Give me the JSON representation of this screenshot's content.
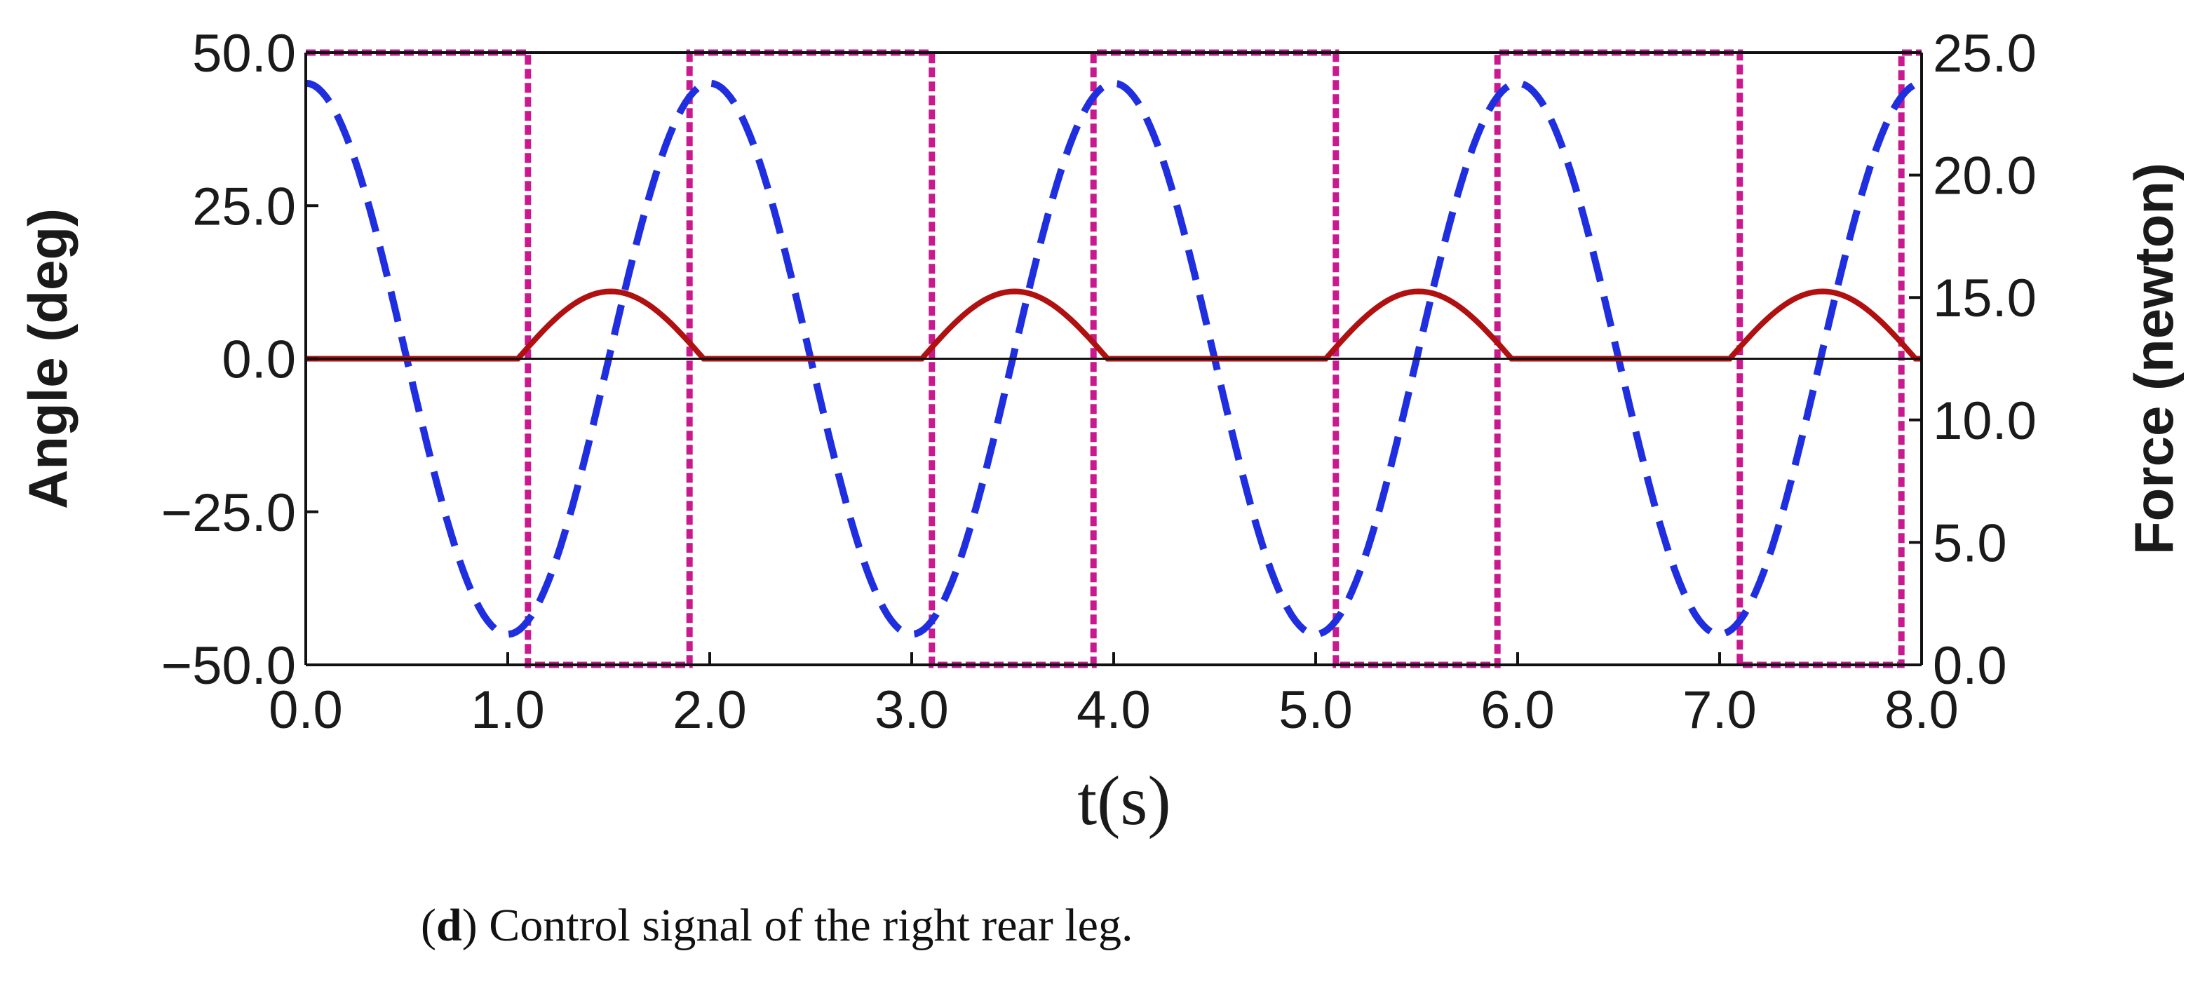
{
  "chart_data": {
    "type": "line",
    "x_range": [
      0,
      8
    ],
    "y_left_range": [
      -50,
      50
    ],
    "y_right_range": [
      0,
      25
    ],
    "x_ticks": [
      "0.0",
      "1.0",
      "2.0",
      "3.0",
      "4.0",
      "5.0",
      "6.0",
      "7.0",
      "8.0"
    ],
    "y_left_ticks": [
      "50.0",
      "25.0",
      "0.0",
      "−25.0",
      "−50.0"
    ],
    "y_right_ticks": [
      "25.0",
      "20.0",
      "15.0",
      "10.0",
      "5.0",
      "0.0"
    ],
    "xlabel": "t(s)",
    "ylabel_left": "Angle (deg)",
    "ylabel_right": "Force (newton)",
    "grid": false,
    "legend": "none",
    "series": [
      {
        "axis": "left",
        "style": "dashed",
        "color": "#1f2fe0",
        "description_model": "cosine, amplitude 45 deg, period 2 s",
        "x": [
          0.0,
          0.25,
          0.5,
          0.75,
          1.0,
          1.25,
          1.5,
          1.75,
          2.0,
          2.25,
          2.5,
          2.75,
          3.0,
          3.25,
          3.5,
          3.75,
          4.0,
          4.25,
          4.5,
          4.75,
          5.0,
          5.25,
          5.5,
          5.75,
          6.0,
          6.25,
          6.5,
          6.75,
          7.0,
          7.25,
          7.5,
          7.75,
          8.0
        ],
        "y": [
          45.0,
          31.8,
          0.0,
          -31.8,
          -45.0,
          -31.8,
          0.0,
          31.8,
          45.0,
          31.8,
          0.0,
          -31.8,
          -45.0,
          -31.8,
          0.0,
          31.8,
          45.0,
          31.8,
          0.0,
          -31.8,
          -45.0,
          -31.8,
          0.0,
          31.8,
          45.0,
          31.8,
          0.0,
          -31.8,
          -45.0,
          -31.8,
          0.0,
          31.8,
          45.0
        ]
      },
      {
        "axis": "left",
        "style": "solid",
        "color": "#b01010",
        "pulses": [
          {
            "start": 1.05,
            "end": 1.97,
            "peak": 11.0
          },
          {
            "start": 3.05,
            "end": 3.97,
            "peak": 11.0
          },
          {
            "start": 5.05,
            "end": 5.97,
            "peak": 11.0
          },
          {
            "start": 7.05,
            "end": 7.97,
            "peak": 11.0
          }
        ],
        "baseline": 0.0
      },
      {
        "axis": "right",
        "style": "dotted-square",
        "color": "#c8198f",
        "levels": {
          "high": 25.0,
          "low": 0.0
        },
        "transitions": [
          0.0,
          1.1,
          1.9,
          3.1,
          3.9,
          5.1,
          5.9,
          7.1,
          7.9,
          8.0
        ],
        "states": [
          "high",
          "low",
          "high",
          "low",
          "high",
          "low",
          "high",
          "low",
          "high"
        ]
      }
    ]
  },
  "caption": {
    "label": "d",
    "text": " Control signal of the right rear leg."
  }
}
